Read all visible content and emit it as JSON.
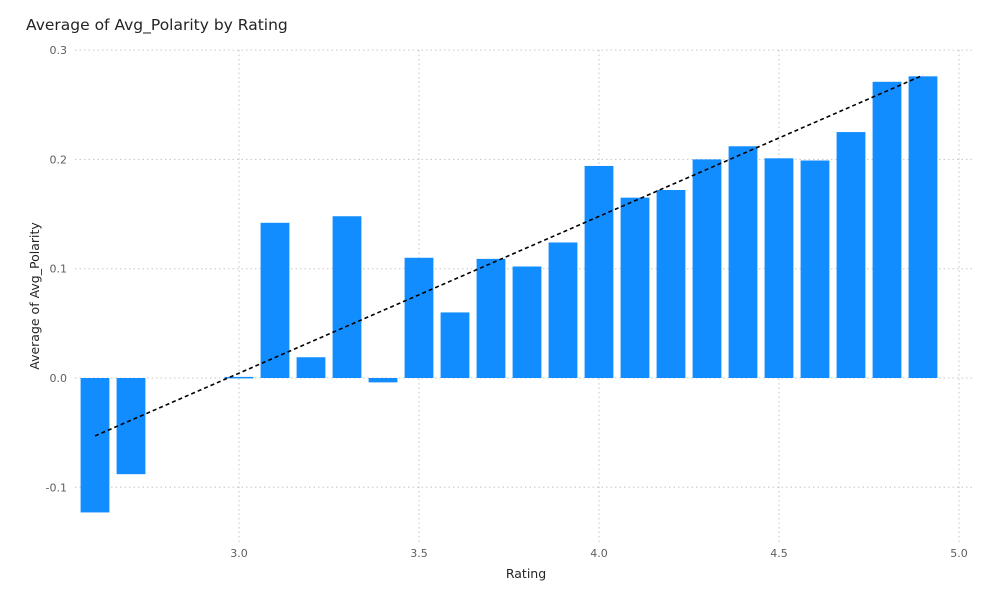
{
  "title": "Average of Avg_Polarity by Rating",
  "chart_data": {
    "type": "bar",
    "title": "Average of Avg_Polarity by Rating",
    "xlabel": "Rating",
    "ylabel": "Average of Avg_Polarity",
    "xlim": [
      2.55,
      5.0
    ],
    "ylim": [
      -0.15,
      0.3
    ],
    "x_ticks": [
      "3.0",
      "3.5",
      "4.0",
      "4.5",
      "5.0"
    ],
    "x_tick_values": [
      3.0,
      3.5,
      4.0,
      4.5,
      5.0
    ],
    "y_ticks": [
      "-0.1",
      "0.0",
      "0.1",
      "0.2",
      "0.3"
    ],
    "y_tick_values": [
      -0.1,
      0.0,
      0.1,
      0.2,
      0.3
    ],
    "grid": true,
    "bar_color": "#118DFF",
    "trend_color": "#000000",
    "bar_width": 0.08,
    "x": [
      2.6,
      2.7,
      3.0,
      3.1,
      3.2,
      3.3,
      3.4,
      3.5,
      3.6,
      3.7,
      3.8,
      3.9,
      4.0,
      4.1,
      4.2,
      4.3,
      4.4,
      4.5,
      4.6,
      4.7,
      4.8,
      4.9
    ],
    "values": [
      -0.123,
      -0.088,
      0.001,
      0.142,
      0.019,
      0.148,
      -0.004,
      0.11,
      0.06,
      0.109,
      0.102,
      0.124,
      0.194,
      0.165,
      0.172,
      0.2,
      0.212,
      0.201,
      0.199,
      0.225,
      0.271,
      0.276
    ],
    "trend_line": {
      "style": "dashed",
      "start": [
        2.6,
        -0.053
      ],
      "end": [
        4.9,
        0.277
      ]
    }
  }
}
